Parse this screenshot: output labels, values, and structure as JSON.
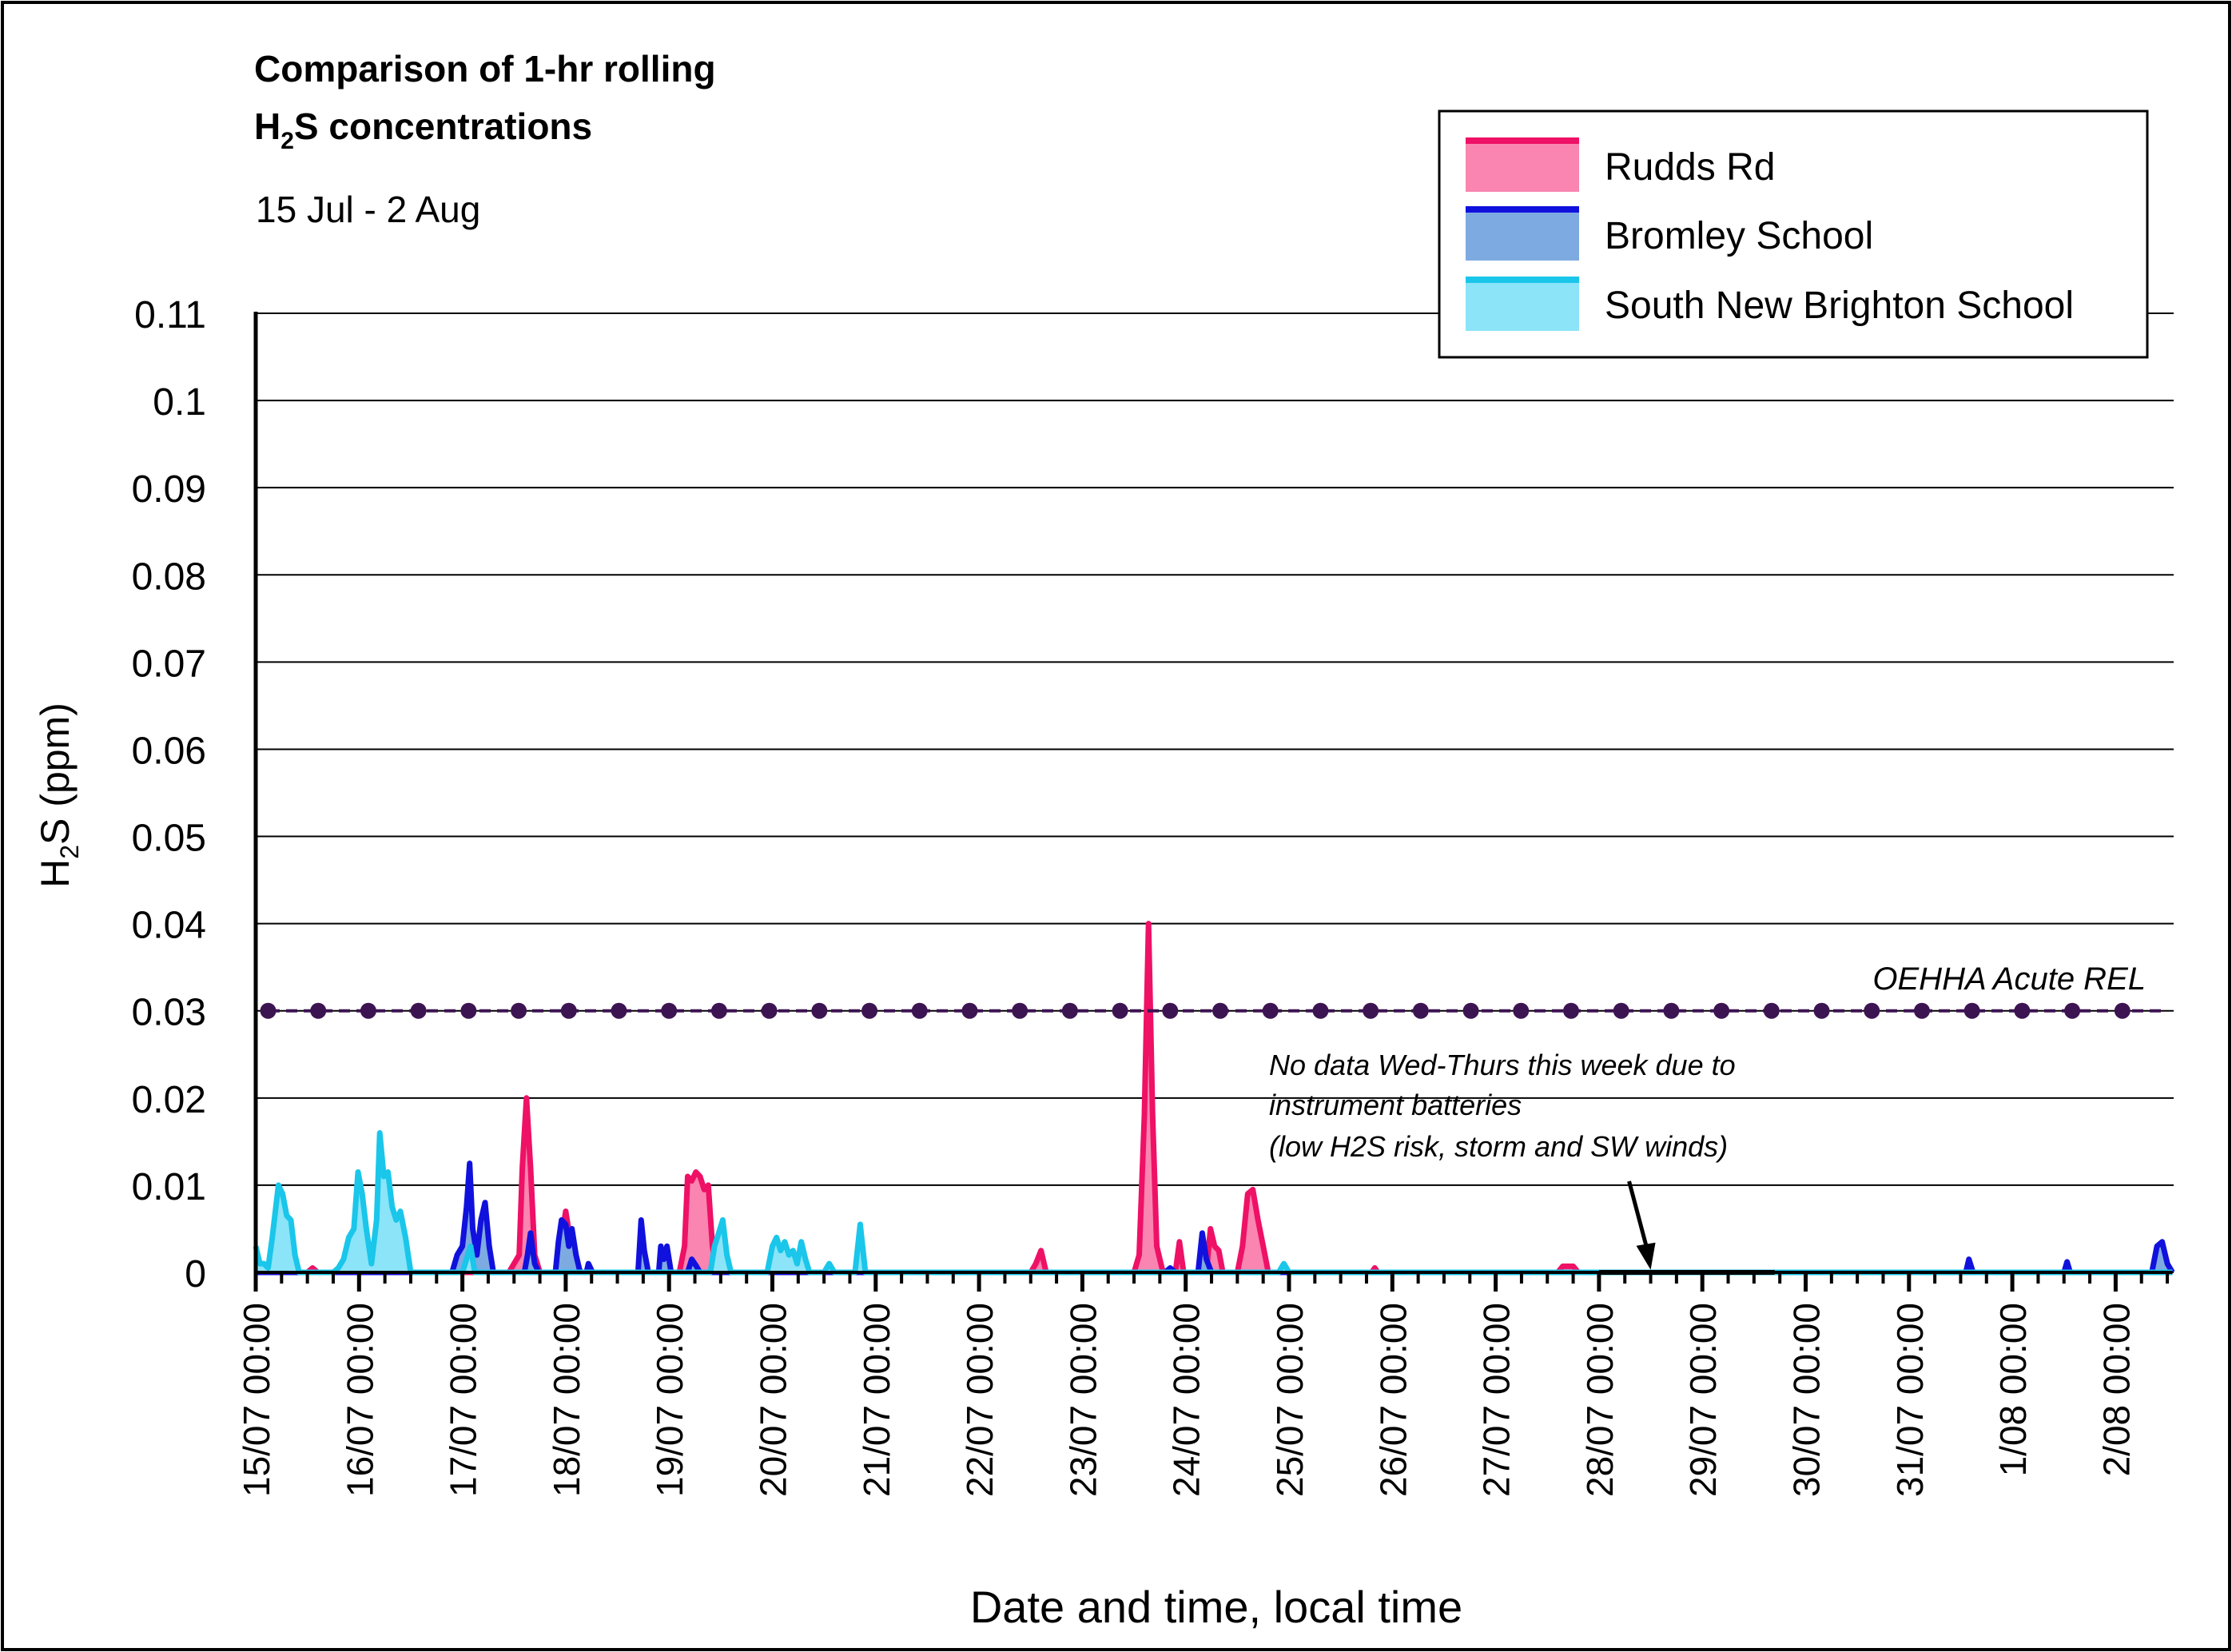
{
  "chart_data": {
    "type": "area",
    "title_line1": "Comparison of 1-hr rolling",
    "title_line2_prefix": "H",
    "title_line2_sub": "2",
    "title_line2_suffix": "S concentrations",
    "subtitle": "15 Jul - 2 Aug",
    "ylabel_prefix": "H",
    "ylabel_sub": "2",
    "ylabel_suffix": "S (ppm)",
    "xlabel": "Date and time, local time",
    "ylim": [
      0,
      0.11
    ],
    "x_range_days": [
      15,
      33.55
    ],
    "grid": true,
    "legend_position": "top-right",
    "y_ticks": [
      {
        "value": 0,
        "label": "0"
      },
      {
        "value": 0.01,
        "label": "0.01"
      },
      {
        "value": 0.02,
        "label": "0.02"
      },
      {
        "value": 0.03,
        "label": "0.03"
      },
      {
        "value": 0.04,
        "label": "0.04"
      },
      {
        "value": 0.05,
        "label": "0.05"
      },
      {
        "value": 0.06,
        "label": "0.06"
      },
      {
        "value": 0.07,
        "label": "0.07"
      },
      {
        "value": 0.08,
        "label": "0.08"
      },
      {
        "value": 0.09,
        "label": "0.09"
      },
      {
        "value": 0.1,
        "label": "0.1"
      },
      {
        "value": 0.11,
        "label": "0.11"
      }
    ],
    "x_ticks": [
      {
        "day": 15,
        "label": "15/07 00:00"
      },
      {
        "day": 16,
        "label": "16/07 00:00"
      },
      {
        "day": 17,
        "label": "17/07 00:00"
      },
      {
        "day": 18,
        "label": "18/07 00:00"
      },
      {
        "day": 19,
        "label": "19/07 00:00"
      },
      {
        "day": 20,
        "label": "20/07 00:00"
      },
      {
        "day": 21,
        "label": "21/07 00:00"
      },
      {
        "day": 22,
        "label": "22/07 00:00"
      },
      {
        "day": 23,
        "label": "23/07 00:00"
      },
      {
        "day": 24,
        "label": "24/07 00:00"
      },
      {
        "day": 25,
        "label": "25/07 00:00"
      },
      {
        "day": 26,
        "label": "26/07 00:00"
      },
      {
        "day": 27,
        "label": "27/07 00:00"
      },
      {
        "day": 28,
        "label": "28/07 00:00"
      },
      {
        "day": 29,
        "label": "29/07 00:00"
      },
      {
        "day": 30,
        "label": "30/07 00:00"
      },
      {
        "day": 31,
        "label": "31/07 00:00"
      },
      {
        "day": 32,
        "label": "1/08 00:00"
      },
      {
        "day": 33,
        "label": "2/08 00:00"
      }
    ],
    "series": [
      {
        "name": "Rudds Rd",
        "line_color": "#ee1166",
        "fill_color": "#f985b0",
        "points": [
          [
            15.0,
            0
          ],
          [
            15.5,
            0
          ],
          [
            15.55,
            0.0005
          ],
          [
            15.6,
            0
          ],
          [
            17.45,
            0
          ],
          [
            17.5,
            0.001
          ],
          [
            17.55,
            0.002
          ],
          [
            17.58,
            0.012
          ],
          [
            17.62,
            0.02
          ],
          [
            17.66,
            0.012
          ],
          [
            17.7,
            0.002
          ],
          [
            17.75,
            0
          ],
          [
            17.92,
            0
          ],
          [
            17.96,
            0.004
          ],
          [
            18.0,
            0.007
          ],
          [
            18.04,
            0.004
          ],
          [
            18.1,
            0.001
          ],
          [
            18.15,
            0
          ],
          [
            19.1,
            0
          ],
          [
            19.15,
            0.003
          ],
          [
            19.18,
            0.011
          ],
          [
            19.22,
            0.0105
          ],
          [
            19.26,
            0.0115
          ],
          [
            19.3,
            0.011
          ],
          [
            19.34,
            0.0095
          ],
          [
            19.38,
            0.01
          ],
          [
            19.42,
            0.003
          ],
          [
            19.46,
            0
          ],
          [
            22.5,
            0
          ],
          [
            22.55,
            0.001
          ],
          [
            22.6,
            0.0025
          ],
          [
            22.65,
            0
          ],
          [
            23.5,
            0
          ],
          [
            23.55,
            0.002
          ],
          [
            23.6,
            0.018
          ],
          [
            23.64,
            0.04
          ],
          [
            23.68,
            0.018
          ],
          [
            23.72,
            0.003
          ],
          [
            23.78,
            0
          ],
          [
            23.9,
            0
          ],
          [
            23.94,
            0.0035
          ],
          [
            23.98,
            0
          ],
          [
            24.2,
            0
          ],
          [
            24.24,
            0.005
          ],
          [
            24.28,
            0.003
          ],
          [
            24.32,
            0.0025
          ],
          [
            24.36,
            0
          ],
          [
            24.5,
            0
          ],
          [
            24.55,
            0.003
          ],
          [
            24.6,
            0.009
          ],
          [
            24.65,
            0.0095
          ],
          [
            24.7,
            0.006
          ],
          [
            24.75,
            0.003
          ],
          [
            24.8,
            0
          ],
          [
            25.8,
            0
          ],
          [
            25.83,
            0.0005
          ],
          [
            25.86,
            0
          ],
          [
            27.6,
            0
          ],
          [
            27.65,
            0.0007
          ],
          [
            27.75,
            0.0007
          ],
          [
            27.8,
            0
          ],
          [
            28.0,
            0
          ]
        ]
      },
      {
        "name": "Bromley School",
        "line_color": "#1111dd",
        "fill_color": "#7eaae2",
        "points": [
          [
            15.0,
            0
          ],
          [
            15.5,
            0
          ],
          [
            16.9,
            0
          ],
          [
            16.95,
            0.002
          ],
          [
            17.0,
            0.003
          ],
          [
            17.04,
            0.0075
          ],
          [
            17.07,
            0.0125
          ],
          [
            17.1,
            0.005
          ],
          [
            17.14,
            0.002
          ],
          [
            17.18,
            0.006
          ],
          [
            17.22,
            0.008
          ],
          [
            17.26,
            0.003
          ],
          [
            17.3,
            0
          ],
          [
            17.6,
            0
          ],
          [
            17.63,
            0.002
          ],
          [
            17.66,
            0.0045
          ],
          [
            17.7,
            0.001
          ],
          [
            17.74,
            0
          ],
          [
            17.9,
            0
          ],
          [
            17.93,
            0.0035
          ],
          [
            17.96,
            0.006
          ],
          [
            18.0,
            0.0055
          ],
          [
            18.03,
            0.003
          ],
          [
            18.06,
            0.005
          ],
          [
            18.1,
            0.002
          ],
          [
            18.14,
            0
          ],
          [
            18.2,
            0
          ],
          [
            18.22,
            0.001
          ],
          [
            18.26,
            0
          ],
          [
            18.7,
            0
          ],
          [
            18.73,
            0.006
          ],
          [
            18.76,
            0.0025
          ],
          [
            18.8,
            0
          ],
          [
            18.9,
            0
          ],
          [
            18.92,
            0.003
          ],
          [
            18.95,
            0.0015
          ],
          [
            18.98,
            0.003
          ],
          [
            19.02,
            0
          ],
          [
            19.18,
            0
          ],
          [
            19.22,
            0.0015
          ],
          [
            19.26,
            0.0008
          ],
          [
            19.3,
            0
          ],
          [
            23.8,
            0
          ],
          [
            23.85,
            0.0005
          ],
          [
            23.9,
            0
          ],
          [
            24.12,
            0
          ],
          [
            24.16,
            0.0045
          ],
          [
            24.2,
            0.0015
          ],
          [
            24.25,
            0
          ],
          [
            25.3,
            0
          ],
          [
            26.3,
            0
          ],
          [
            31.55,
            0
          ],
          [
            31.58,
            0.0015
          ],
          [
            31.62,
            0
          ],
          [
            32.5,
            0
          ],
          [
            32.53,
            0.0012
          ],
          [
            32.56,
            0
          ],
          [
            33.35,
            0
          ],
          [
            33.4,
            0.003
          ],
          [
            33.45,
            0.0035
          ],
          [
            33.5,
            0.001
          ],
          [
            33.55,
            0
          ]
        ]
      },
      {
        "name": "South New Brighton School",
        "line_color": "#1ac6ea",
        "fill_color": "#8be4f8",
        "points": [
          [
            15.0,
            0.003
          ],
          [
            15.04,
            0.001
          ],
          [
            15.08,
            0.001
          ],
          [
            15.12,
            0.0005
          ],
          [
            15.16,
            0.004
          ],
          [
            15.22,
            0.01
          ],
          [
            15.26,
            0.009
          ],
          [
            15.3,
            0.0065
          ],
          [
            15.34,
            0.006
          ],
          [
            15.38,
            0.002
          ],
          [
            15.42,
            0
          ],
          [
            15.75,
            0
          ],
          [
            15.8,
            0.0005
          ],
          [
            15.85,
            0.0015
          ],
          [
            15.9,
            0.004
          ],
          [
            15.95,
            0.005
          ],
          [
            15.99,
            0.0115
          ],
          [
            16.03,
            0.009
          ],
          [
            16.07,
            0.005
          ],
          [
            16.12,
            0.001
          ],
          [
            16.17,
            0.006
          ],
          [
            16.2,
            0.016
          ],
          [
            16.24,
            0.011
          ],
          [
            16.28,
            0.0115
          ],
          [
            16.32,
            0.0075
          ],
          [
            16.36,
            0.006
          ],
          [
            16.4,
            0.007
          ],
          [
            16.45,
            0.004
          ],
          [
            16.5,
            0
          ],
          [
            17.0,
            0
          ],
          [
            17.04,
            0.0015
          ],
          [
            17.08,
            0.003
          ],
          [
            17.12,
            0
          ],
          [
            19.4,
            0
          ],
          [
            19.44,
            0.003
          ],
          [
            19.48,
            0.0045
          ],
          [
            19.52,
            0.006
          ],
          [
            19.56,
            0.002
          ],
          [
            19.6,
            0
          ],
          [
            19.95,
            0
          ],
          [
            20.0,
            0.003
          ],
          [
            20.04,
            0.004
          ],
          [
            20.08,
            0.0025
          ],
          [
            20.12,
            0.0035
          ],
          [
            20.16,
            0.002
          ],
          [
            20.2,
            0.0025
          ],
          [
            20.24,
            0.001
          ],
          [
            20.28,
            0.0035
          ],
          [
            20.32,
            0.0015
          ],
          [
            20.36,
            0
          ],
          [
            20.5,
            0
          ],
          [
            20.55,
            0.001
          ],
          [
            20.6,
            0
          ],
          [
            20.8,
            0
          ],
          [
            20.85,
            0.0055
          ],
          [
            20.9,
            0
          ],
          [
            24.9,
            0
          ],
          [
            24.95,
            0.001
          ],
          [
            25.0,
            0
          ],
          [
            25.3,
            0
          ],
          [
            29.7,
            0
          ],
          [
            33.55,
            0
          ]
        ]
      }
    ],
    "reference_line": {
      "name": "OEHHA Acute REL",
      "value": 0.03,
      "color": "#3d1452",
      "marker_spacing_days": 0.485
    },
    "no_data_line": {
      "from_day": 28.0,
      "to_day": 29.7,
      "color": "#000000"
    },
    "annotation": {
      "lines": [
        "No data Wed-Thurs this week due to",
        "instrument batteries",
        "(low H2S risk, storm and SW winds)"
      ],
      "arrow_to_day": 28.5,
      "arrow_to_value": 0.0003
    }
  }
}
